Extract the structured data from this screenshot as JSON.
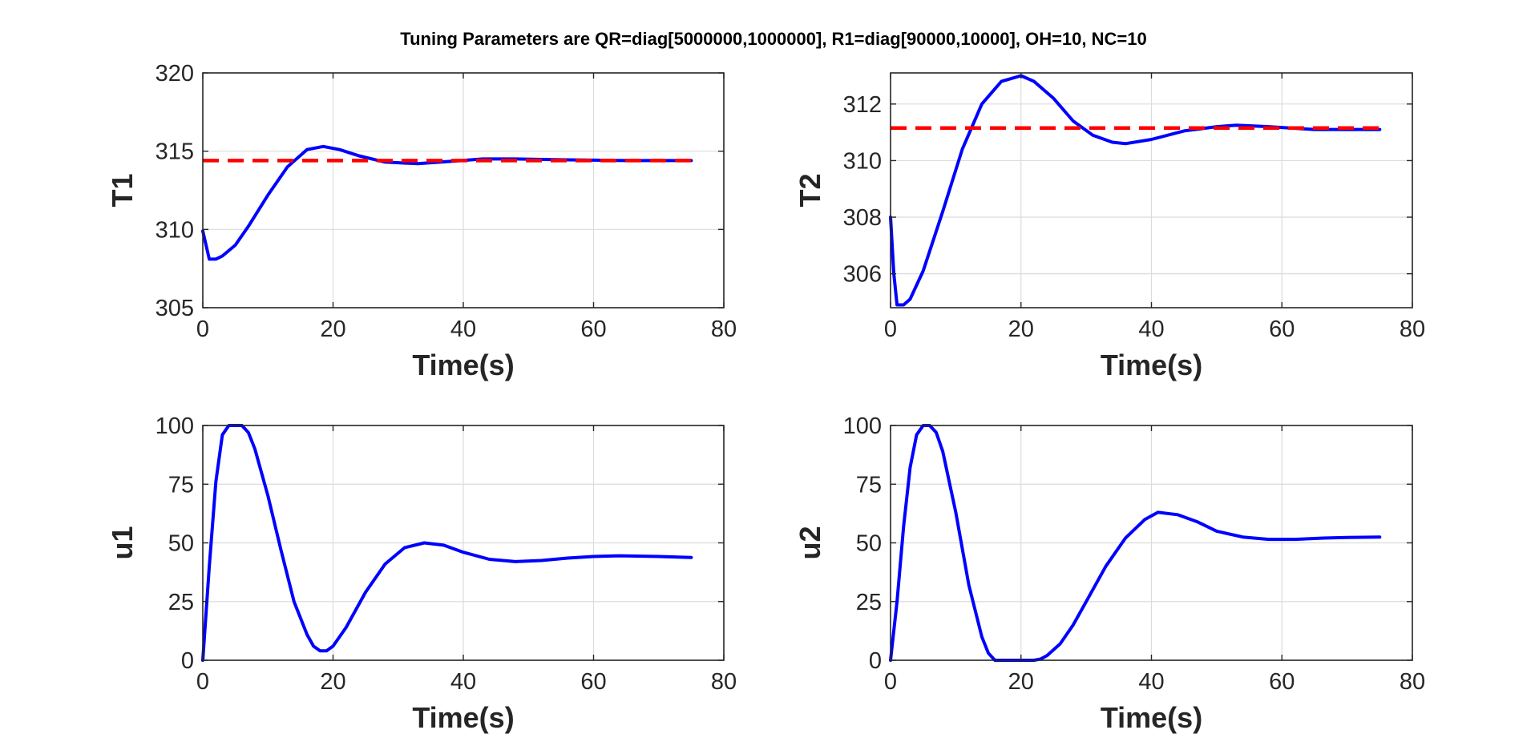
{
  "figure": {
    "title": "Tuning Parameters are QR=diag[5000000,1000000],  R1=diag[90000,10000],  OH=10,  NC=10"
  },
  "colors": {
    "response": "#0000ff",
    "setpoint": "#ff0000",
    "axes": "#262626",
    "grid": "#dcdcdc"
  },
  "chart_data": [
    {
      "type": "line",
      "xlabel": "Time(s)",
      "ylabel": "T1",
      "xlim": [
        0,
        80
      ],
      "ylim": [
        305,
        320
      ],
      "xticks": [
        0,
        20,
        40,
        60,
        80
      ],
      "yticks": [
        305,
        310,
        315,
        320
      ],
      "grid": true,
      "series": [
        {
          "style": "solid",
          "color": "response",
          "x": [
            0,
            1,
            2,
            3,
            5,
            7,
            10,
            13,
            16,
            18.5,
            21,
            24,
            28,
            33,
            38,
            43,
            48,
            55,
            65,
            75
          ],
          "y": [
            309.9,
            308.1,
            308.1,
            308.3,
            309.0,
            310.2,
            312.2,
            314.0,
            315.1,
            315.3,
            315.1,
            314.7,
            314.3,
            314.2,
            314.35,
            314.5,
            314.5,
            314.45,
            314.4,
            314.4
          ]
        },
        {
          "style": "dashed",
          "color": "setpoint",
          "x": [
            0,
            75
          ],
          "y": [
            314.4,
            314.4
          ]
        }
      ]
    },
    {
      "type": "line",
      "xlabel": "Time(s)",
      "ylabel": "T2",
      "xlim": [
        0,
        80
      ],
      "ylim": [
        304.8,
        313.1
      ],
      "xticks": [
        0,
        20,
        40,
        60,
        80
      ],
      "yticks": [
        306,
        308,
        310,
        312
      ],
      "grid": true,
      "series": [
        {
          "style": "solid",
          "color": "response",
          "x": [
            0,
            0.5,
            1,
            2,
            3,
            5,
            8,
            11,
            14,
            17,
            20,
            22,
            25,
            28,
            31,
            34,
            36,
            40,
            45,
            50,
            53,
            58,
            65,
            75
          ],
          "y": [
            308.0,
            306.0,
            304.9,
            304.9,
            305.1,
            306.1,
            308.2,
            310.4,
            312.0,
            312.8,
            313.0,
            312.8,
            312.2,
            311.4,
            310.9,
            310.65,
            310.6,
            310.75,
            311.05,
            311.2,
            311.25,
            311.2,
            311.1,
            311.1
          ]
        },
        {
          "style": "dashed",
          "color": "setpoint",
          "x": [
            0,
            75
          ],
          "y": [
            311.15,
            311.15
          ]
        }
      ]
    },
    {
      "type": "line",
      "xlabel": "Time(s)",
      "ylabel": "u1",
      "xlim": [
        0,
        80
      ],
      "ylim": [
        0,
        100
      ],
      "xticks": [
        0,
        20,
        40,
        60,
        80
      ],
      "yticks": [
        0,
        25,
        50,
        75,
        100
      ],
      "grid": true,
      "series": [
        {
          "style": "solid",
          "color": "response",
          "x": [
            0,
            1,
            2,
            3,
            4,
            5,
            6,
            7,
            8,
            10,
            12,
            14,
            16,
            17,
            18,
            19,
            20,
            22,
            25,
            28,
            31,
            34,
            37,
            40,
            44,
            48,
            52,
            56,
            60,
            64,
            70,
            75
          ],
          "y": [
            0,
            40,
            76,
            96,
            100,
            100,
            100,
            97,
            90,
            70,
            47,
            25,
            11,
            6,
            4,
            4,
            6,
            14,
            29,
            41,
            48,
            50,
            49,
            46,
            43,
            42,
            42.5,
            43.5,
            44.2,
            44.5,
            44.2,
            43.8
          ]
        }
      ]
    },
    {
      "type": "line",
      "xlabel": "Time(s)",
      "ylabel": "u2",
      "xlim": [
        0,
        80
      ],
      "ylim": [
        0,
        100
      ],
      "xticks": [
        0,
        20,
        40,
        60,
        80
      ],
      "yticks": [
        0,
        25,
        50,
        75,
        100
      ],
      "grid": true,
      "series": [
        {
          "style": "solid",
          "color": "response",
          "x": [
            0,
            1,
            2,
            3,
            4,
            5,
            6,
            7,
            8,
            10,
            12,
            14,
            15,
            16,
            17,
            20,
            22,
            23,
            24,
            26,
            28,
            30,
            33,
            36,
            39,
            41,
            44,
            47,
            50,
            54,
            58,
            62,
            66,
            70,
            75
          ],
          "y": [
            0,
            25,
            57,
            82,
            96,
            100,
            100,
            97,
            89,
            63,
            32,
            10,
            3,
            0,
            0,
            0,
            0,
            0.5,
            2,
            7,
            15,
            25,
            40,
            52,
            60,
            63,
            62,
            59,
            55,
            52.5,
            51.5,
            51.5,
            52,
            52.3,
            52.5
          ]
        }
      ]
    }
  ]
}
